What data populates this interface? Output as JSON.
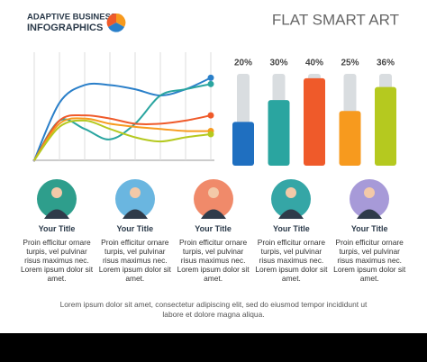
{
  "header": {
    "title_line1": "ADAPTIVE BUSINESS",
    "title_line2": "INFOGRAPHICS",
    "subtitle": "FLAT SMART ART"
  },
  "chart_data": [
    {
      "type": "line",
      "x": [
        0,
        1,
        2,
        3,
        4,
        5,
        6,
        7
      ],
      "xlim": [
        0,
        7
      ],
      "ylim": [
        0,
        100
      ],
      "grid": true,
      "series": [
        {
          "color": "#2a7fc9",
          "values": [
            0,
            55,
            72,
            72,
            68,
            62,
            68,
            79
          ]
        },
        {
          "color": "#2aa5a0",
          "values": [
            0,
            38,
            30,
            20,
            35,
            62,
            68,
            73
          ]
        },
        {
          "color": "#ef5a2a",
          "values": [
            0,
            38,
            43,
            40,
            35,
            35,
            38,
            43
          ]
        },
        {
          "color": "#f79a1e",
          "values": [
            0,
            35,
            40,
            35,
            32,
            30,
            28,
            28
          ]
        },
        {
          "color": "#b5c91f",
          "values": [
            0,
            32,
            38,
            30,
            22,
            18,
            22,
            25
          ]
        }
      ]
    },
    {
      "type": "bar",
      "values": [
        20,
        30,
        40,
        25,
        36
      ],
      "value_labels": [
        "20%",
        "30%",
        "40%",
        "25%",
        "36%"
      ],
      "colors": [
        "#1f6fc0",
        "#2aa5a0",
        "#ef5a2a",
        "#f79a1e",
        "#b5c91f"
      ],
      "ylim": [
        0,
        42
      ]
    }
  ],
  "people": [
    {
      "title": "Your Title",
      "text": "Proin efficitur ornare turpis, vel pulvinar risus maximus nec. Lorem ipsum dolor sit amet."
    },
    {
      "title": "Your Title",
      "text": "Proin efficitur ornare turpis, vel pulvinar risus maximus nec. Lorem ipsum dolor sit amet."
    },
    {
      "title": "Your Title",
      "text": "Proin efficitur ornare turpis, vel pulvinar risus maximus nec. Lorem ipsum dolor sit amet."
    },
    {
      "title": "Your Title",
      "text": "Proin efficitur ornare turpis, vel pulvinar risus maximus nec. Lorem ipsum dolor sit amet."
    },
    {
      "title": "Your Title",
      "text": "Proin efficitur ornare turpis, vel pulvinar risus maximus nec. Lorem ipsum dolor sit amet."
    }
  ],
  "footer": "Lorem ipsum dolor sit amet, consectetur adipiscing elit, sed do eiusmod tempor incididunt ut labore et dolore magna aliqua."
}
